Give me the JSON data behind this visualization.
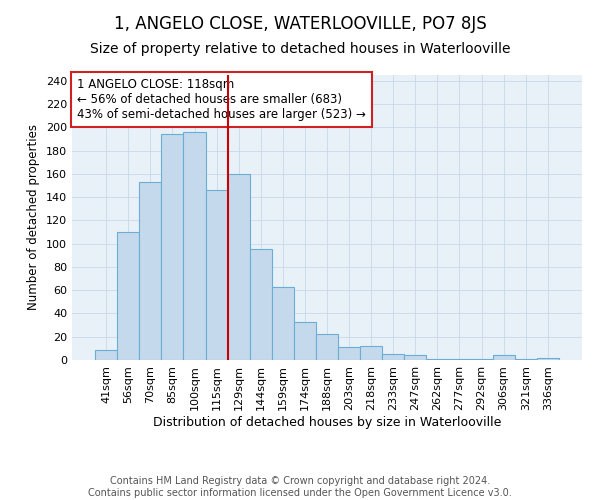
{
  "title": "1, ANGELO CLOSE, WATERLOOVILLE, PO7 8JS",
  "subtitle": "Size of property relative to detached houses in Waterlooville",
  "xlabel": "Distribution of detached houses by size in Waterlooville",
  "ylabel": "Number of detached properties",
  "bar_labels": [
    "41sqm",
    "56sqm",
    "70sqm",
    "85sqm",
    "100sqm",
    "115sqm",
    "129sqm",
    "144sqm",
    "159sqm",
    "174sqm",
    "188sqm",
    "203sqm",
    "218sqm",
    "233sqm",
    "247sqm",
    "262sqm",
    "277sqm",
    "292sqm",
    "306sqm",
    "321sqm",
    "336sqm"
  ],
  "bar_values": [
    9,
    110,
    153,
    194,
    196,
    146,
    160,
    95,
    63,
    33,
    22,
    11,
    12,
    5,
    4,
    1,
    1,
    1,
    4,
    1,
    2
  ],
  "bar_color": "#c5d9ed",
  "bar_edge_color": "#6aaed6",
  "vline_x": 5.5,
  "vline_color": "#cc0000",
  "ylim": [
    0,
    245
  ],
  "yticks": [
    0,
    20,
    40,
    60,
    80,
    100,
    120,
    140,
    160,
    180,
    200,
    220,
    240
  ],
  "annotation_title": "1 ANGELO CLOSE: 118sqm",
  "annotation_line1": "← 56% of detached houses are smaller (683)",
  "annotation_line2": "43% of semi-detached houses are larger (523) →",
  "footnote1": "Contains HM Land Registry data © Crown copyright and database right 2024.",
  "footnote2": "Contains public sector information licensed under the Open Government Licence v3.0.",
  "title_fontsize": 12,
  "subtitle_fontsize": 10,
  "xlabel_fontsize": 9,
  "ylabel_fontsize": 8.5,
  "tick_fontsize": 8,
  "annotation_fontsize": 8.5,
  "footnote_fontsize": 7,
  "bg_color": "#ffffff",
  "grid_color": "#c8d8ea"
}
